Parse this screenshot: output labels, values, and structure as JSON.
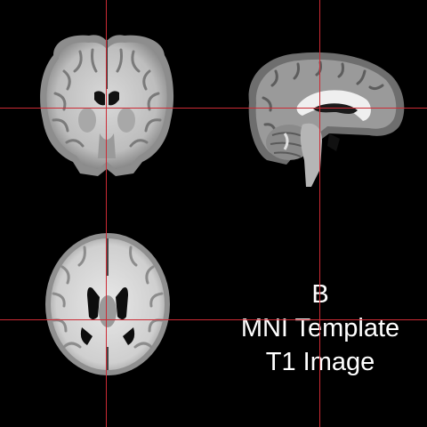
{
  "viewer": {
    "panel_letter": "B",
    "template_name": "MNI Template",
    "image_type": "T1 Image"
  },
  "views": [
    "coronal",
    "sagittal",
    "axial"
  ],
  "colors": {
    "background": "#000000",
    "crosshair": "#cc2b35",
    "white_matter": "#e6e6e6",
    "gray_matter": "#8a8a8a",
    "csf": "#0a0a0a"
  }
}
